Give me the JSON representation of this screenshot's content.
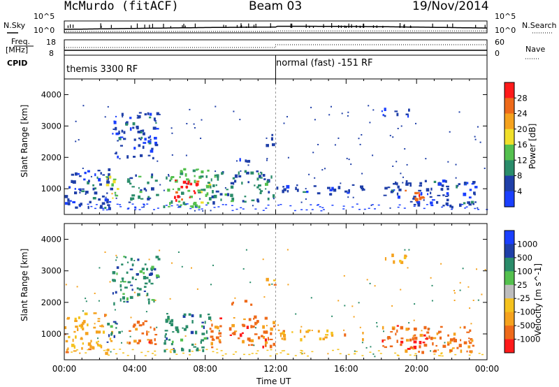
{
  "header": {
    "title": "McMurdo (fitACF)",
    "beam": "Beam 03",
    "date": "19/Nov/2014"
  },
  "top_panels": {
    "nsky_label": "N.Sky",
    "nsky_ticks": [
      "10^5",
      "10^0"
    ],
    "nsearch_label": "N.Search",
    "nsearch_ticks": [
      "10^5",
      "10^0"
    ],
    "freq_label_1": "Freq.",
    "freq_label_2": "[MHz]",
    "freq_ticks": [
      "18",
      "8"
    ],
    "nave_label": "Nave",
    "nave_ticks": [
      "60",
      "0"
    ],
    "cpid_label": "CPID",
    "cpid_programs": [
      {
        "name": "themis 3300 RF",
        "start_ut": 0
      },
      {
        "name": "normal (fast) -151 RF",
        "start_ut": 12
      }
    ]
  },
  "chart_data": [
    {
      "type": "heatmap",
      "name": "power",
      "xlabel": "Time UT",
      "ylabel": "Slant Range [km]",
      "xlim": [
        0,
        24
      ],
      "ylim": [
        180,
        4500
      ],
      "x_ticks": [
        "00:00",
        "04:00",
        "08:00",
        "12:00",
        "16:00",
        "20:00",
        "00:00"
      ],
      "y_ticks": [
        1000,
        2000,
        3000,
        4000
      ],
      "colorbar_label": "Power [dB]",
      "colorbar_ticks": [
        4,
        8,
        12,
        16,
        20,
        24,
        28
      ],
      "colors": [
        "#1a3fff",
        "#1f3fa8",
        "#2a8c6a",
        "#54c04e",
        "#f0df2a",
        "#f5a21e",
        "#ee6a1a",
        "#ff1a1a"
      ],
      "regions": [
        {
          "t0": 0.0,
          "t1": 2.7,
          "r0": 400,
          "r1": 1700,
          "level": 1
        },
        {
          "t0": 2.3,
          "t1": 3.1,
          "r0": 700,
          "r1": 1500,
          "level": 4
        },
        {
          "t0": 2.7,
          "t1": 5.3,
          "r0": 2000,
          "r1": 3500,
          "level": 1
        },
        {
          "t0": 3.5,
          "t1": 5.2,
          "r0": 700,
          "r1": 1500,
          "level": 2
        },
        {
          "t0": 5.6,
          "t1": 8.2,
          "r0": 450,
          "r1": 1700,
          "level": 3
        },
        {
          "t0": 6.2,
          "t1": 7.6,
          "r0": 550,
          "r1": 1300,
          "level": 7
        },
        {
          "t0": 8.2,
          "t1": 11.9,
          "r0": 600,
          "r1": 1600,
          "level": 2
        },
        {
          "t0": 9.4,
          "t1": 10.6,
          "r0": 1900,
          "r1": 2100,
          "level": 1
        },
        {
          "t0": 11.4,
          "t1": 11.9,
          "r0": 2400,
          "r1": 2800,
          "level": 1
        },
        {
          "t0": 12.0,
          "t1": 17.0,
          "r0": 850,
          "r1": 1150,
          "level": 1
        },
        {
          "t0": 18.0,
          "t1": 23.4,
          "r0": 450,
          "r1": 1300,
          "level": 1
        },
        {
          "t0": 19.3,
          "t1": 20.6,
          "r0": 600,
          "r1": 1000,
          "level": 6
        },
        {
          "t0": 18.0,
          "t1": 19.6,
          "r0": 3300,
          "r1": 3600,
          "level": 1
        }
      ]
    },
    {
      "type": "heatmap",
      "name": "velocity",
      "xlabel": "Time UT",
      "ylabel": "Slant Range [km]",
      "xlim": [
        0,
        24
      ],
      "ylim": [
        180,
        4500
      ],
      "x_ticks": [
        "00:00",
        "04:00",
        "08:00",
        "12:00",
        "16:00",
        "20:00",
        "00:00"
      ],
      "y_ticks": [
        1000,
        2000,
        3000,
        4000
      ],
      "colorbar_label": "Velocity [m s^-1]",
      "colorbar_ticks": [
        "1000",
        "500",
        "100",
        "25",
        "-25",
        "-100",
        "-500",
        "-1000"
      ],
      "colors": [
        "#1a3fff",
        "#1f3fa8",
        "#2a8c6a",
        "#54c04e",
        "#bdbdbd",
        "#f5c21e",
        "#f5a21e",
        "#ee6a1a",
        "#ff1a1a"
      ],
      "regions": [
        {
          "t0": 0.0,
          "t1": 2.7,
          "r0": 400,
          "r1": 1700,
          "level": 6
        },
        {
          "t0": 2.3,
          "t1": 3.1,
          "r0": 700,
          "r1": 1500,
          "level": 2
        },
        {
          "t0": 2.7,
          "t1": 5.3,
          "r0": 2000,
          "r1": 3500,
          "level": 2
        },
        {
          "t0": 3.5,
          "t1": 5.2,
          "r0": 700,
          "r1": 1500,
          "level": 7
        },
        {
          "t0": 5.6,
          "t1": 8.2,
          "r0": 450,
          "r1": 1700,
          "level": 2
        },
        {
          "t0": 8.2,
          "t1": 11.9,
          "r0": 600,
          "r1": 1600,
          "level": 7
        },
        {
          "t0": 9.4,
          "t1": 10.6,
          "r0": 1900,
          "r1": 2100,
          "level": 7
        },
        {
          "t0": 11.4,
          "t1": 11.9,
          "r0": 2400,
          "r1": 2800,
          "level": 6
        },
        {
          "t0": 12.0,
          "t1": 17.0,
          "r0": 850,
          "r1": 1150,
          "level": 6
        },
        {
          "t0": 18.0,
          "t1": 23.4,
          "r0": 450,
          "r1": 1300,
          "level": 7
        },
        {
          "t0": 19.3,
          "t1": 20.6,
          "r0": 600,
          "r1": 1000,
          "level": 8
        },
        {
          "t0": 18.0,
          "t1": 19.6,
          "r0": 3300,
          "r1": 3600,
          "level": 6
        }
      ]
    }
  ]
}
